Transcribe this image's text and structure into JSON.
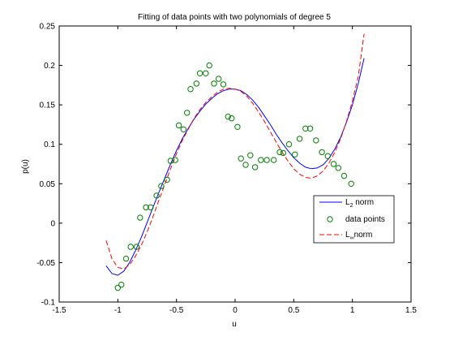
{
  "chart_data": {
    "type": "line",
    "title": "Fitting of data points with two polynomials of degree 5",
    "xlabel": "u",
    "ylabel": "p(u)",
    "xlim": [
      -1.5,
      1.5
    ],
    "ylim": [
      -0.1,
      0.25
    ],
    "xticks": [
      "-1.5",
      "-1",
      "-0.5",
      "0",
      "0.5",
      "1",
      "1.5"
    ],
    "yticks": [
      "-0.1",
      "-0.05",
      "0",
      "0.05",
      "0.1",
      "0.15",
      "0.2",
      "0.25"
    ],
    "grid": false,
    "legend_position": "right",
    "legend": {
      "l2_base": "L",
      "l2_sub": "2",
      "l2_tail": " norm",
      "points": "data points",
      "linf_base": "L",
      "linf_sub": "∞",
      "linf_tail": "norm"
    },
    "colors": {
      "l2": "#0000ff",
      "points": "#008000",
      "linf": "#ff0000"
    },
    "data_points": {
      "x": [
        -1.0,
        -0.97,
        -0.93,
        -0.89,
        -0.84,
        -0.81,
        -0.76,
        -0.72,
        -0.67,
        -0.63,
        -0.58,
        -0.55,
        -0.51,
        -0.48,
        -0.44,
        -0.41,
        -0.38,
        -0.33,
        -0.3,
        -0.25,
        -0.22,
        -0.18,
        -0.14,
        -0.1,
        -0.06,
        -0.03,
        0.02,
        0.05,
        0.09,
        0.13,
        0.17,
        0.22,
        0.27,
        0.33,
        0.38,
        0.41,
        0.46,
        0.51,
        0.55,
        0.6,
        0.64,
        0.69,
        0.74,
        0.79,
        0.84,
        0.88,
        0.93,
        0.99
      ],
      "y": [
        -0.082,
        -0.078,
        -0.045,
        -0.03,
        -0.03,
        0.007,
        0.02,
        0.02,
        0.035,
        0.047,
        0.055,
        0.079,
        0.08,
        0.124,
        0.119,
        0.14,
        0.17,
        0.177,
        0.19,
        0.19,
        0.2,
        0.177,
        0.183,
        0.176,
        0.135,
        0.133,
        0.122,
        0.082,
        0.074,
        0.086,
        0.071,
        0.08,
        0.08,
        0.08,
        0.09,
        0.089,
        0.1,
        0.087,
        0.107,
        0.12,
        0.12,
        0.105,
        0.09,
        0.085,
        0.075,
        0.07,
        0.06,
        0.05
      ]
    },
    "series": [
      {
        "name": "L2 norm",
        "x": [
          -1.1,
          -1.05,
          -1.0,
          -0.95,
          -0.9,
          -0.85,
          -0.8,
          -0.75,
          -0.7,
          -0.65,
          -0.6,
          -0.55,
          -0.5,
          -0.45,
          -0.4,
          -0.35,
          -0.3,
          -0.25,
          -0.2,
          -0.15,
          -0.1,
          -0.05,
          0.0,
          0.05,
          0.1,
          0.15,
          0.2,
          0.25,
          0.3,
          0.35,
          0.4,
          0.45,
          0.5,
          0.55,
          0.6,
          0.65,
          0.7,
          0.75,
          0.8,
          0.85,
          0.9,
          0.95,
          1.0,
          1.05,
          1.1
        ],
        "y": [
          -0.054,
          -0.064,
          -0.066,
          -0.061,
          -0.05,
          -0.035,
          -0.018,
          0.001,
          0.02,
          0.039,
          0.057,
          0.075,
          0.092,
          0.107,
          0.12,
          0.132,
          0.142,
          0.151,
          0.158,
          0.164,
          0.168,
          0.17,
          0.17,
          0.168,
          0.163,
          0.156,
          0.147,
          0.136,
          0.125,
          0.113,
          0.102,
          0.092,
          0.083,
          0.076,
          0.071,
          0.069,
          0.07,
          0.074,
          0.082,
          0.094,
          0.109,
          0.128,
          0.15,
          0.177,
          0.209
        ]
      },
      {
        "name": "L∞ norm",
        "x": [
          -1.1,
          -1.05,
          -1.0,
          -0.95,
          -0.9,
          -0.85,
          -0.8,
          -0.75,
          -0.7,
          -0.65,
          -0.6,
          -0.55,
          -0.5,
          -0.45,
          -0.4,
          -0.35,
          -0.3,
          -0.25,
          -0.2,
          -0.15,
          -0.1,
          -0.05,
          0.0,
          0.05,
          0.1,
          0.15,
          0.2,
          0.25,
          0.3,
          0.35,
          0.4,
          0.45,
          0.5,
          0.55,
          0.6,
          0.65,
          0.7,
          0.75,
          0.8,
          0.85,
          0.9,
          0.95,
          1.0,
          1.05,
          1.1
        ],
        "y": [
          -0.022,
          -0.045,
          -0.056,
          -0.058,
          -0.053,
          -0.042,
          -0.028,
          -0.011,
          0.008,
          0.029,
          0.049,
          0.069,
          0.088,
          0.105,
          0.119,
          0.133,
          0.144,
          0.153,
          0.16,
          0.166,
          0.17,
          0.171,
          0.17,
          0.167,
          0.161,
          0.152,
          0.141,
          0.129,
          0.116,
          0.103,
          0.09,
          0.079,
          0.069,
          0.062,
          0.058,
          0.057,
          0.06,
          0.066,
          0.076,
          0.09,
          0.107,
          0.129,
          0.155,
          0.186,
          0.24
        ]
      }
    ]
  }
}
